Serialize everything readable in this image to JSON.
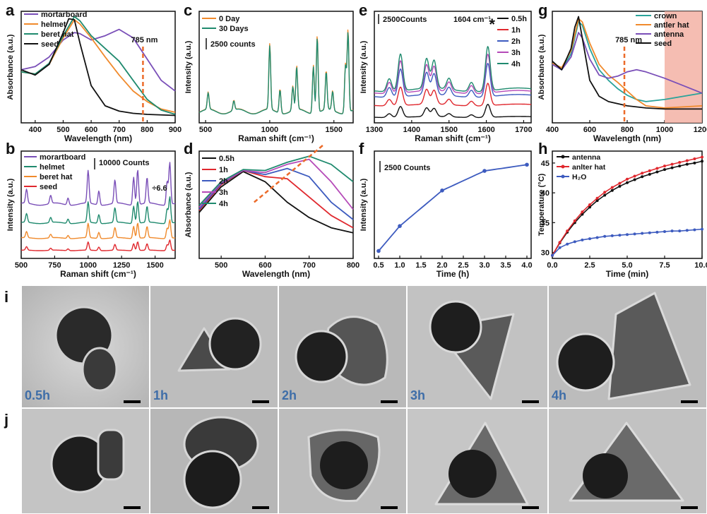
{
  "panel_labels": [
    "a",
    "b",
    "c",
    "d",
    "e",
    "f",
    "g",
    "h",
    "i",
    "j"
  ],
  "tem_times": [
    "0.5h",
    "1h",
    "2h",
    "3h",
    "4h"
  ],
  "colors": {
    "purple": "#7a4fb8",
    "orange": "#f08a2c",
    "green": "#1f8a6e",
    "black": "#111111",
    "red": "#e0282e",
    "magenta": "#b54ab8",
    "teal": "#2aa39a",
    "blue": "#3d5bbf",
    "dash": "#ec6b2a",
    "shade": "#f3b2a5"
  },
  "chart_data": [
    {
      "id": "a",
      "type": "line",
      "xlabel": "Wavelength (nm)",
      "ylabel": "Absorbance (a.u.)",
      "xlim": [
        350,
        900
      ],
      "ylim": [
        0,
        1.05
      ],
      "xticks": [
        400,
        500,
        600,
        700,
        800,
        900
      ],
      "annotation": "785 nm",
      "marker_x": 785,
      "series": [
        {
          "name": "mortarboard",
          "color": "#7a4fb8",
          "x": [
            350,
            400,
            450,
            500,
            540,
            560,
            600,
            650,
            700,
            750,
            800,
            850,
            900
          ],
          "y": [
            0.5,
            0.53,
            0.62,
            0.78,
            0.85,
            0.84,
            0.78,
            0.82,
            0.88,
            0.8,
            0.6,
            0.4,
            0.3
          ]
        },
        {
          "name": "helmet",
          "color": "#f08a2c",
          "x": [
            350,
            400,
            450,
            500,
            540,
            560,
            600,
            650,
            700,
            750,
            800,
            850,
            900
          ],
          "y": [
            0.48,
            0.46,
            0.55,
            0.8,
            0.97,
            0.93,
            0.8,
            0.62,
            0.45,
            0.3,
            0.2,
            0.13,
            0.1
          ]
        },
        {
          "name": "beret hat",
          "color": "#1f8a6e",
          "x": [
            350,
            400,
            450,
            500,
            540,
            560,
            600,
            650,
            700,
            750,
            800,
            850,
            900
          ],
          "y": [
            0.48,
            0.46,
            0.56,
            0.82,
            1.0,
            0.96,
            0.82,
            0.7,
            0.58,
            0.4,
            0.22,
            0.12,
            0.08
          ]
        },
        {
          "name": "seed",
          "color": "#111111",
          "x": [
            350,
            400,
            450,
            500,
            520,
            540,
            560,
            600,
            650,
            700,
            750,
            800,
            900
          ],
          "y": [
            0.5,
            0.45,
            0.55,
            0.85,
            0.98,
            0.97,
            0.75,
            0.35,
            0.16,
            0.11,
            0.09,
            0.08,
            0.07
          ]
        }
      ]
    },
    {
      "id": "b",
      "type": "line",
      "xlabel": "Raman shift (cm⁻¹)",
      "ylabel": "Intensity (a.u.)",
      "xlim": [
        500,
        1650
      ],
      "xticks": [
        500,
        750,
        1000,
        1250,
        1500
      ],
      "scalebar": "10000 Counts",
      "factor": "÷6.6",
      "peaks": [
        {
          "x": 540,
          "h": 0.6
        },
        {
          "x": 720,
          "h": 0.35
        },
        {
          "x": 850,
          "h": 0.3
        },
        {
          "x": 1000,
          "h": 1.4
        },
        {
          "x": 1080,
          "h": 0.6
        },
        {
          "x": 1200,
          "h": 1.0
        },
        {
          "x": 1340,
          "h": 1.2
        },
        {
          "x": 1370,
          "h": 1.5
        },
        {
          "x": 1440,
          "h": 1.1
        },
        {
          "x": 1590,
          "h": 1.0
        },
        {
          "x": 1610,
          "h": 1.8
        }
      ],
      "series": [
        {
          "name": "morartboard",
          "color": "#7a4fb8",
          "offset": 3.2,
          "scale": 1.6
        },
        {
          "name": "helmet",
          "color": "#1f8a6e",
          "offset": 2.0,
          "scale": 1.0
        },
        {
          "name": "beret hat",
          "color": "#f08a2c",
          "offset": 1.0,
          "scale": 0.7
        },
        {
          "name": "seed",
          "color": "#e0282e",
          "offset": 0.2,
          "scale": 0.4
        }
      ]
    },
    {
      "id": "c",
      "type": "line",
      "xlabel": "Raman shift (cm⁻¹)",
      "ylabel": "Intensity (a.u.)",
      "xlim": [
        450,
        1650
      ],
      "xticks": [
        500,
        1000,
        1500
      ],
      "scalebar": "2500 counts",
      "peaks": [
        {
          "x": 520,
          "h": 0.35
        },
        {
          "x": 720,
          "h": 0.2
        },
        {
          "x": 1000,
          "h": 1.35
        },
        {
          "x": 1080,
          "h": 0.5
        },
        {
          "x": 1180,
          "h": 0.5
        },
        {
          "x": 1210,
          "h": 0.9
        },
        {
          "x": 1340,
          "h": 1.0
        },
        {
          "x": 1370,
          "h": 1.6
        },
        {
          "x": 1440,
          "h": 0.8
        },
        {
          "x": 1490,
          "h": 0.4
        },
        {
          "x": 1590,
          "h": 1.0
        },
        {
          "x": 1610,
          "h": 1.7
        }
      ],
      "series": [
        {
          "name": "0 Day",
          "color": "#f08a2c",
          "offset": 0.0,
          "scale": 1.0
        },
        {
          "name": "30 Days",
          "color": "#1f8a6e",
          "offset": 0.0,
          "scale": 0.97
        }
      ]
    },
    {
      "id": "d",
      "type": "line",
      "xlabel": "Wavelength (nm)",
      "ylabel": "Absorbance (a.u.)",
      "xlim": [
        450,
        800
      ],
      "xticks": [
        500,
        600,
        700,
        800
      ],
      "series": [
        {
          "name": "0.5h",
          "color": "#111111",
          "x": [
            450,
            500,
            550,
            600,
            650,
            700,
            750,
            800
          ],
          "y": [
            0.45,
            0.7,
            0.85,
            0.75,
            0.55,
            0.4,
            0.3,
            0.25
          ]
        },
        {
          "name": "1h",
          "color": "#e0282e",
          "x": [
            450,
            500,
            550,
            600,
            650,
            700,
            750,
            800
          ],
          "y": [
            0.47,
            0.72,
            0.86,
            0.8,
            0.78,
            0.6,
            0.42,
            0.3
          ]
        },
        {
          "name": "2h",
          "color": "#3d5bbf",
          "x": [
            450,
            500,
            550,
            600,
            650,
            700,
            750,
            800
          ],
          "y": [
            0.48,
            0.73,
            0.86,
            0.82,
            0.88,
            0.8,
            0.55,
            0.38
          ]
        },
        {
          "name": "3h",
          "color": "#b54ab8",
          "x": [
            450,
            500,
            550,
            600,
            650,
            700,
            750,
            800
          ],
          "y": [
            0.5,
            0.74,
            0.86,
            0.84,
            0.92,
            0.97,
            0.75,
            0.48
          ]
        },
        {
          "name": "4h",
          "color": "#1f8a6e",
          "x": [
            450,
            500,
            550,
            600,
            650,
            700,
            750,
            800
          ],
          "y": [
            0.52,
            0.75,
            0.87,
            0.86,
            0.94,
            1.0,
            0.92,
            0.75
          ]
        }
      ]
    },
    {
      "id": "e",
      "type": "line",
      "xlabel": "Raman shift (cm⁻¹)",
      "ylabel": "Intensity (a.u.)",
      "xlim": [
        1300,
        1720
      ],
      "xticks": [
        1300,
        1400,
        1500,
        1600,
        1700
      ],
      "scalebar": "2500Counts",
      "annotation": "1604 cm⁻¹",
      "marker": "*",
      "peaks": [
        {
          "x": 1340,
          "h": 0.35
        },
        {
          "x": 1370,
          "h": 1.0
        },
        {
          "x": 1440,
          "h": 0.8
        },
        {
          "x": 1460,
          "h": 0.75
        },
        {
          "x": 1500,
          "h": 0.3
        },
        {
          "x": 1560,
          "h": 0.25
        },
        {
          "x": 1604,
          "h": 1.2
        }
      ],
      "series": [
        {
          "name": "0.5h",
          "color": "#111111",
          "offset": 0.0,
          "scale": 0.35
        },
        {
          "name": "1h",
          "color": "#e0282e",
          "offset": 0.35,
          "scale": 0.6
        },
        {
          "name": "2h",
          "color": "#3d5bbf",
          "offset": 0.6,
          "scale": 0.9
        },
        {
          "name": "3h",
          "color": "#b54ab8",
          "offset": 0.7,
          "scale": 1.05
        },
        {
          "name": "4h",
          "color": "#1f8a6e",
          "offset": 0.75,
          "scale": 1.2
        }
      ]
    },
    {
      "id": "f",
      "type": "line",
      "xlabel": "Time (h)",
      "ylabel": "Intensity (a.u.)",
      "xlim": [
        0.4,
        4.1
      ],
      "ylim": [
        0,
        1.0
      ],
      "xticks": [
        0.5,
        1.0,
        1.5,
        2.0,
        2.5,
        3.0,
        3.5,
        4.0
      ],
      "scalebar": "2500 Counts",
      "series": [
        {
          "name": "",
          "color": "#3d5bbf",
          "x": [
            0.5,
            1.0,
            2.0,
            3.0,
            4.0
          ],
          "y": [
            0.02,
            0.3,
            0.7,
            0.92,
            0.99
          ]
        }
      ]
    },
    {
      "id": "g",
      "type": "line",
      "xlabel": "Wavelength (nm)",
      "ylabel": "Absorbance (a.u.)",
      "xlim": [
        400,
        1200
      ],
      "xticks": [
        400,
        600,
        800,
        1000,
        1200
      ],
      "annotation": "785 nm",
      "marker_x": 785,
      "shade_from": 1000,
      "series": [
        {
          "name": "crown",
          "color": "#2aa39a",
          "x": [
            400,
            450,
            500,
            540,
            560,
            600,
            650,
            700,
            750,
            800,
            850,
            900,
            1000,
            1100,
            1200
          ],
          "y": [
            0.55,
            0.5,
            0.65,
            0.95,
            0.92,
            0.7,
            0.5,
            0.4,
            0.32,
            0.26,
            0.22,
            0.2,
            0.22,
            0.25,
            0.28
          ]
        },
        {
          "name": "antler hat",
          "color": "#f08a2c",
          "x": [
            400,
            450,
            500,
            540,
            560,
            600,
            650,
            700,
            750,
            800,
            850,
            900,
            1000,
            1100,
            1200
          ],
          "y": [
            0.56,
            0.52,
            0.68,
            0.98,
            0.95,
            0.75,
            0.55,
            0.45,
            0.38,
            0.3,
            0.22,
            0.16,
            0.14,
            0.15,
            0.16
          ]
        },
        {
          "name": "antenna",
          "color": "#7a4fb8",
          "x": [
            400,
            450,
            500,
            540,
            560,
            600,
            650,
            700,
            750,
            800,
            850,
            900,
            1000,
            1100,
            1200
          ],
          "y": [
            0.55,
            0.5,
            0.62,
            0.85,
            0.8,
            0.6,
            0.45,
            0.42,
            0.44,
            0.48,
            0.5,
            0.48,
            0.42,
            0.35,
            0.28
          ]
        },
        {
          "name": "seed",
          "color": "#111111",
          "x": [
            400,
            450,
            500,
            520,
            540,
            560,
            600,
            650,
            700,
            800,
            900,
            1000,
            1100,
            1200
          ],
          "y": [
            0.58,
            0.5,
            0.7,
            0.9,
            1.0,
            0.8,
            0.4,
            0.25,
            0.2,
            0.16,
            0.14,
            0.13,
            0.13,
            0.13
          ]
        }
      ]
    },
    {
      "id": "h",
      "type": "line",
      "xlabel": "Time (min)",
      "ylabel": "Temperature (°C)",
      "xlim": [
        0,
        10
      ],
      "ylim": [
        29,
        47
      ],
      "xticks": [
        0.0,
        2.5,
        5.0,
        7.5,
        10.0
      ],
      "yticks": [
        30,
        35,
        40,
        45
      ],
      "series": [
        {
          "name": "antenna",
          "color": "#111111",
          "x": [
            0,
            0.5,
            1,
            1.5,
            2,
            2.5,
            3,
            3.5,
            4,
            4.5,
            5,
            5.5,
            6,
            6.5,
            7,
            7.5,
            8,
            8.5,
            9,
            9.5,
            10
          ],
          "y": [
            29.5,
            31.6,
            33.4,
            35.0,
            36.4,
            37.6,
            38.7,
            39.6,
            40.4,
            41.1,
            41.7,
            42.2,
            42.7,
            43.1,
            43.5,
            43.9,
            44.2,
            44.5,
            44.8,
            45.0,
            45.3
          ]
        },
        {
          "name": "anlter hat",
          "color": "#e0282e",
          "x": [
            0,
            0.5,
            1,
            1.5,
            2,
            2.5,
            3,
            3.5,
            4,
            4.5,
            5,
            5.5,
            6,
            6.5,
            7,
            7.5,
            8,
            8.5,
            9,
            9.5,
            10
          ],
          "y": [
            29.5,
            31.7,
            33.6,
            35.3,
            36.8,
            38.0,
            39.1,
            40.1,
            40.9,
            41.6,
            42.3,
            42.8,
            43.3,
            43.7,
            44.1,
            44.5,
            44.8,
            45.1,
            45.4,
            45.7,
            46.0
          ]
        },
        {
          "name": "H₂O",
          "color": "#3d5bbf",
          "x": [
            0,
            0.5,
            1,
            1.5,
            2,
            2.5,
            3,
            3.5,
            4,
            4.5,
            5,
            5.5,
            6,
            6.5,
            7,
            7.5,
            8,
            8.5,
            9,
            9.5,
            10
          ],
          "y": [
            29.5,
            30.8,
            31.4,
            31.8,
            32.1,
            32.3,
            32.5,
            32.7,
            32.8,
            32.9,
            33.0,
            33.1,
            33.2,
            33.3,
            33.4,
            33.5,
            33.6,
            33.6,
            33.7,
            33.8,
            33.9
          ]
        }
      ]
    }
  ]
}
